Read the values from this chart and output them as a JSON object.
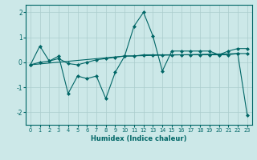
{
  "title": "",
  "xlabel": "Humidex (Indice chaleur)",
  "ylabel": "",
  "background_color": "#cce8e8",
  "grid_color": "#aacccc",
  "line_color": "#006666",
  "xlim": [
    -0.5,
    23.5
  ],
  "ylim": [
    -2.5,
    2.3
  ],
  "yticks": [
    -2,
    -1,
    0,
    1,
    2
  ],
  "xticks": [
    0,
    1,
    2,
    3,
    4,
    5,
    6,
    7,
    8,
    9,
    10,
    11,
    12,
    13,
    14,
    15,
    16,
    17,
    18,
    19,
    20,
    21,
    22,
    23
  ],
  "line1_x": [
    0,
    1,
    2,
    3,
    4,
    5,
    6,
    7,
    8,
    9,
    10,
    11,
    12,
    13,
    14,
    15,
    16,
    17,
    18,
    19,
    20,
    21,
    22,
    23
  ],
  "line1_y": [
    -0.1,
    0.65,
    0.05,
    0.25,
    -1.25,
    -0.55,
    -0.65,
    -0.55,
    -1.45,
    -0.4,
    0.25,
    1.45,
    2.0,
    1.05,
    -0.35,
    0.45,
    0.45,
    0.45,
    0.45,
    0.45,
    0.3,
    0.45,
    0.55,
    0.55
  ],
  "line2_x": [
    0,
    1,
    2,
    3,
    4,
    5,
    6,
    7,
    8,
    9,
    10,
    11,
    12,
    13,
    14,
    15,
    16,
    17,
    18,
    19,
    20,
    21,
    22,
    23
  ],
  "line2_y": [
    -0.1,
    0.0,
    0.05,
    0.15,
    -0.05,
    -0.1,
    0.0,
    0.1,
    0.15,
    0.2,
    0.25,
    0.25,
    0.3,
    0.3,
    0.3,
    0.3,
    0.3,
    0.3,
    0.3,
    0.3,
    0.3,
    0.3,
    0.35,
    0.35
  ],
  "line3_x": [
    0,
    10,
    22,
    23
  ],
  "line3_y": [
    -0.1,
    0.25,
    0.35,
    -2.1
  ],
  "marker": "D",
  "markersize": 2.0,
  "linewidth": 0.8,
  "xlabel_fontsize": 6.0,
  "xtick_fontsize": 4.8,
  "ytick_fontsize": 5.5
}
